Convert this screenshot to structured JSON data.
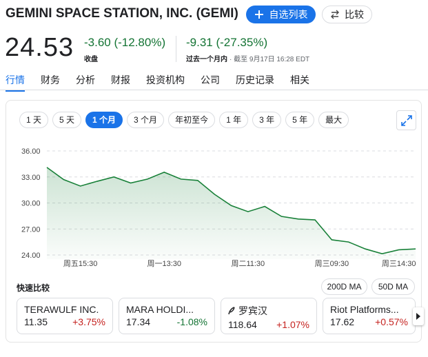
{
  "header": {
    "title": "GEMINI SPACE STATION, INC. (GEMI)",
    "watchlist_button": "自选列表",
    "compare_button": "比较"
  },
  "quote": {
    "price": "24.53",
    "change": "-3.60 (-12.80%)",
    "change_label": "收盘",
    "period_change": "-9.31 (-27.35%)",
    "period_label": "过去一个月内",
    "as_of": "· 截至 9月17日 16:28 EDT"
  },
  "tabs": [
    "行情",
    "财务",
    "分析",
    "财报",
    "投资机构",
    "公司",
    "历史记录",
    "相关"
  ],
  "selected_tab": 0,
  "ranges": [
    "1 天",
    "5 天",
    "1 个月",
    "3 个月",
    "年初至今",
    "1 年",
    "3 年",
    "5 年",
    "最大"
  ],
  "selected_range": 2,
  "chart_data": {
    "type": "line",
    "categories": [
      null,
      null,
      "周五15:30",
      null,
      null,
      null,
      null,
      "周一13:30",
      null,
      null,
      null,
      null,
      "周二11:30",
      null,
      null,
      null,
      null,
      "周三09:30",
      null,
      null,
      null,
      "周三14:30",
      null
    ],
    "series": [
      {
        "name": "GEMI",
        "color": "#188038",
        "values": [
          34.1,
          32.7,
          31.95,
          32.5,
          33.0,
          32.3,
          32.75,
          33.55,
          32.75,
          32.6,
          31.0,
          29.7,
          29.0,
          29.6,
          28.45,
          28.15,
          28.05,
          25.75,
          25.5,
          24.7,
          24.15,
          24.6,
          24.7
        ]
      }
    ],
    "ylim": [
      24,
      36
    ],
    "yticks": [
      {
        "value": 24,
        "label": "24.00"
      },
      {
        "value": 27,
        "label": "27.00"
      },
      {
        "value": 30,
        "label": "30.00"
      },
      {
        "value": 33,
        "label": "33.00"
      },
      {
        "value": 36,
        "label": "36.00"
      }
    ],
    "grid": true
  },
  "quick_compare": {
    "title": "快速比较",
    "buttons": [
      "200D MA",
      "50D MA"
    ],
    "cards": [
      {
        "name": "TERAWULF INC.",
        "price": "11.35",
        "change": "+3.75%"
      },
      {
        "name": "MARA HOLDI...",
        "price": "17.34",
        "change": "-1.08%"
      },
      {
        "name": "罗宾汉",
        "price": "118.64",
        "change": "+1.07%"
      },
      {
        "name": "Riot Platforms...",
        "price": "17.62",
        "change": "+0.57%"
      }
    ]
  }
}
